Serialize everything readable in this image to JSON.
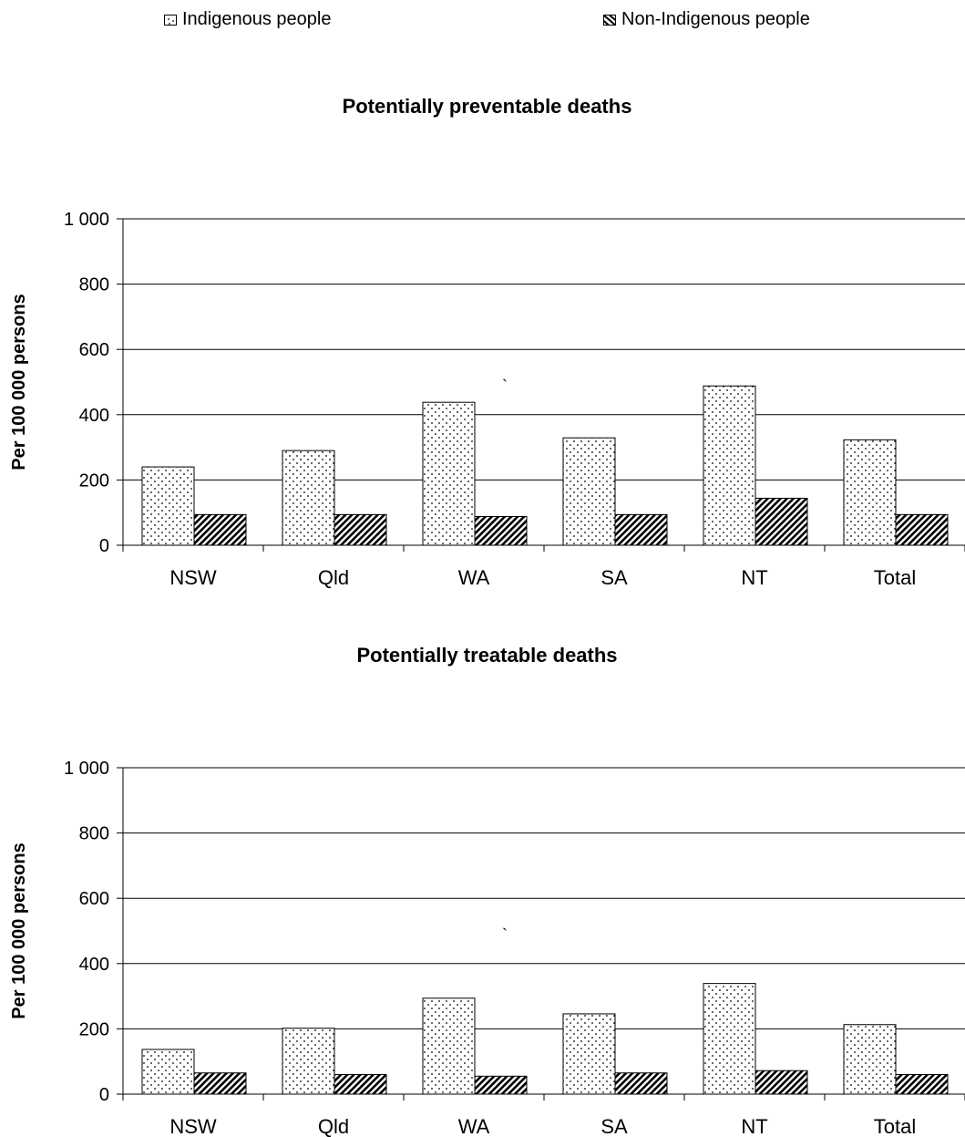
{
  "legend": [
    {
      "label": "Indigenous people",
      "pattern": "dots"
    },
    {
      "label": "Non-Indigenous people",
      "pattern": "hatch"
    }
  ],
  "colors": {
    "background": "#ffffff",
    "ink": "#000000"
  },
  "stray_marks": [
    "`",
    "`"
  ],
  "chart_data": [
    {
      "type": "bar",
      "title": "Potentially preventable deaths",
      "ylabel": "Per 100 000 persons",
      "xlabel": "",
      "ylim": [
        0,
        1000
      ],
      "yticks": [
        0,
        200,
        400,
        600,
        800,
        1000
      ],
      "ytick_labels": [
        "0",
        "200",
        "400",
        "600",
        "800",
        "1 000"
      ],
      "grid": true,
      "categories": [
        "NSW",
        "Qld",
        "WA",
        "SA",
        "NT",
        "Total"
      ],
      "series": [
        {
          "name": "Indigenous people",
          "values": [
            240,
            290,
            438,
            329,
            488,
            323
          ]
        },
        {
          "name": "Non-Indigenous people",
          "values": [
            94,
            94,
            88,
            94,
            144,
            94
          ]
        }
      ]
    },
    {
      "type": "bar",
      "title": "Potentially treatable deaths",
      "ylabel": "Per 100 000 persons",
      "xlabel": "",
      "ylim": [
        0,
        1000
      ],
      "yticks": [
        0,
        200,
        400,
        600,
        800,
        1000
      ],
      "ytick_labels": [
        "0",
        "200",
        "400",
        "600",
        "800",
        "1 000"
      ],
      "grid": true,
      "categories": [
        "NSW",
        "Qld",
        "WA",
        "SA",
        "NT",
        "Total"
      ],
      "series": [
        {
          "name": "Indigenous people",
          "values": [
            137,
            202,
            294,
            246,
            339,
            213
          ]
        },
        {
          "name": "Non-Indigenous people",
          "values": [
            65,
            60,
            55,
            65,
            72,
            60
          ]
        }
      ]
    }
  ]
}
